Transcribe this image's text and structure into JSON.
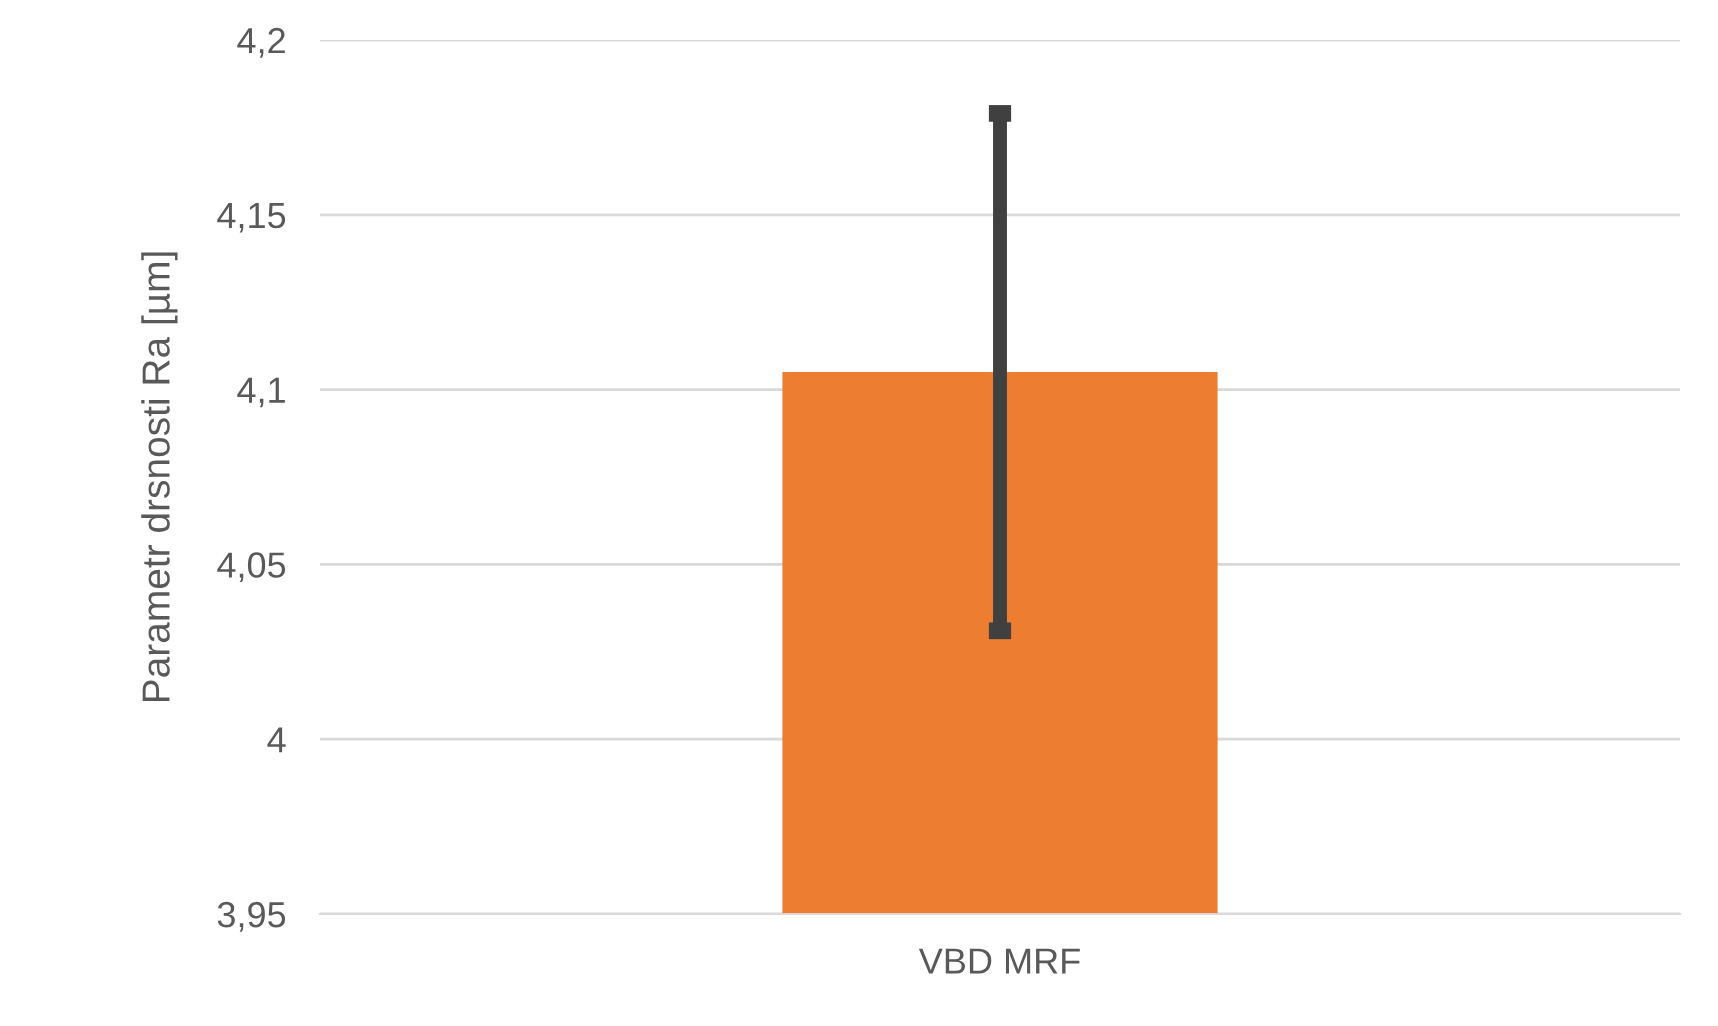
{
  "chart_data": {
    "type": "bar",
    "ylabel": "Parametr drsnosti Ra [µm]",
    "categories": [
      "VBD MRF"
    ],
    "values": [
      4.105
    ],
    "errors": [
      0.074
    ],
    "color": "#ed7d31",
    "ylim": [
      3.95,
      4.2
    ],
    "yticks": [
      {
        "value": 3.95,
        "label": "3,95"
      },
      {
        "value": 4.0,
        "label": "4"
      },
      {
        "value": 4.05,
        "label": "4,05"
      },
      {
        "value": 4.1,
        "label": "4,1"
      },
      {
        "value": 4.15,
        "label": "4,15"
      },
      {
        "value": 4.2,
        "label": "4,2"
      }
    ],
    "grid": "y"
  }
}
